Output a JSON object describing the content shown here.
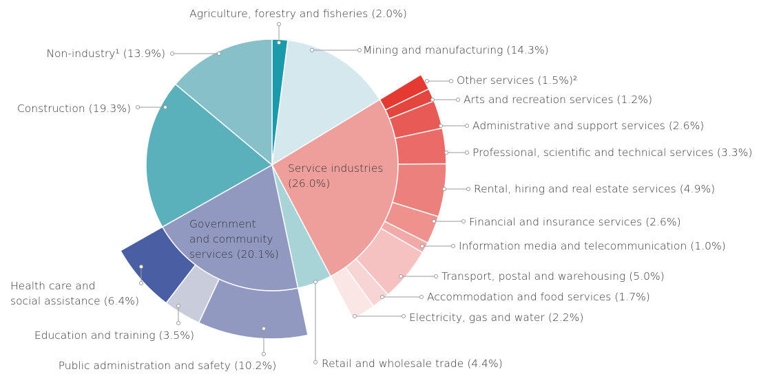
{
  "chart_data": {
    "type": "pie",
    "segments": [
      {
        "name": "Agriculture, forestry and fisheries",
        "value": 2.0,
        "value_label": "(2.0%)",
        "color": "#1a9aaa"
      },
      {
        "name": "Mining and manufacturing",
        "value": 14.3,
        "value_label": "(14.3%)",
        "color": "#d4e8ee"
      },
      {
        "name": "Service industries",
        "value": 26.0,
        "value_label": "(26.0%)",
        "color": "#ee9e9b",
        "children": [
          {
            "name": "Other services",
            "value": 1.5,
            "value_label": "(1.5%)²",
            "color": "#e53a32"
          },
          {
            "name": "Arts and recreation services",
            "value": 1.2,
            "value_label": "(1.2%)",
            "color": "#e2463e"
          },
          {
            "name": "Administrative and support services",
            "value": 2.6,
            "value_label": "(2.6%)",
            "color": "#e85a55"
          },
          {
            "name": "Professional, scientific and technical services",
            "value": 3.3,
            "value_label": "(3.3%)",
            "color": "#ea6b68"
          },
          {
            "name": "Rental, hiring and real estate services",
            "value": 4.9,
            "value_label": "(4.9%)",
            "color": "#ec807c"
          },
          {
            "name": "Financial and insurance services",
            "value": 2.6,
            "value_label": "(2.6%)",
            "color": "#ef918d"
          },
          {
            "name": "Information media and telecommunication",
            "value": 1.0,
            "value_label": "(1.0%)",
            "color": "#f2aaa8"
          },
          {
            "name": "Transport, postal and warehousing",
            "value": 5.0,
            "value_label": "(5.0%)",
            "color": "#f5c2c1"
          },
          {
            "name": "Accommodation and food services",
            "value": 1.7,
            "value_label": "(1.7%)",
            "color": "#f7d5d4"
          },
          {
            "name": "Electricity, gas and water",
            "value": 2.2,
            "value_label": "(2.2%)",
            "color": "#fae6e5"
          }
        ]
      },
      {
        "name": "Retail and wholesale trade",
        "value": 4.4,
        "value_label": "(4.4%)",
        "color": "#a8d4d8"
      },
      {
        "name": "Government and community services",
        "value": 20.1,
        "value_label": "(20.1%)",
        "color": "#9199c0",
        "children": [
          {
            "name": "Public administration and safety",
            "value": 10.2,
            "value_label": "(10.2%)",
            "color": "#9199c0"
          },
          {
            "name": "Education and training",
            "value": 3.5,
            "value_label": "(3.5%)",
            "color": "#c9ccdb"
          },
          {
            "name": "Health care and social assistance",
            "value": 6.4,
            "value_label": "(6.4%)",
            "color": "#4a5ea3"
          }
        ]
      },
      {
        "name": "Construction",
        "value": 19.3,
        "value_label": "(19.3%)",
        "color": "#5ab0bb"
      },
      {
        "name": "Non-industry¹",
        "value": 13.9,
        "value_label": "(13.9%)",
        "color": "#87c0c8"
      }
    ]
  }
}
